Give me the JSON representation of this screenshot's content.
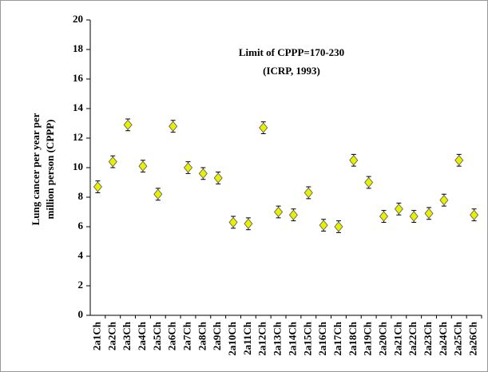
{
  "chart_data": {
    "type": "scatter",
    "ylabel_lines": [
      "Lung cancer per year per",
      "million person (CPPP)"
    ],
    "annotations": [
      "Limit of CPPP=170-230",
      "(ICRP, 1993)"
    ],
    "categories": [
      "2a1Ch",
      "2a2Ch",
      "2a3Ch",
      "2a4Ch",
      "2a5Ch",
      "2a6Ch",
      "2a7Ch",
      "2a8Ch",
      "2a9Ch",
      "2a10Ch",
      "2a11Ch",
      "2a12Ch",
      "2a13Ch",
      "2a14Ch",
      "2a15Ch",
      "2a16Ch",
      "2a17Ch",
      "2a18Ch",
      "2a19Ch",
      "2a20Ch",
      "2a21Ch",
      "2a22Ch",
      "2a23Ch",
      "2a24Ch",
      "2a25Ch",
      "2a26Ch"
    ],
    "values": [
      8.7,
      10.4,
      12.9,
      10.1,
      8.2,
      12.8,
      10.0,
      9.6,
      9.3,
      6.3,
      6.2,
      12.7,
      7.0,
      6.8,
      8.3,
      6.1,
      6.0,
      10.5,
      9.0,
      6.7,
      7.2,
      6.7,
      6.9,
      7.8,
      10.5,
      6.8
    ],
    "errors": [
      0.4,
      0.4,
      0.4,
      0.4,
      0.4,
      0.4,
      0.4,
      0.4,
      0.4,
      0.4,
      0.4,
      0.4,
      0.4,
      0.4,
      0.4,
      0.4,
      0.4,
      0.4,
      0.4,
      0.4,
      0.4,
      0.4,
      0.4,
      0.4,
      0.4,
      0.4
    ],
    "color": "#e8f000",
    "ylim": [
      0,
      20
    ],
    "yticks": [
      0,
      2,
      4,
      6,
      8,
      10,
      12,
      14,
      16,
      18,
      20
    ]
  }
}
